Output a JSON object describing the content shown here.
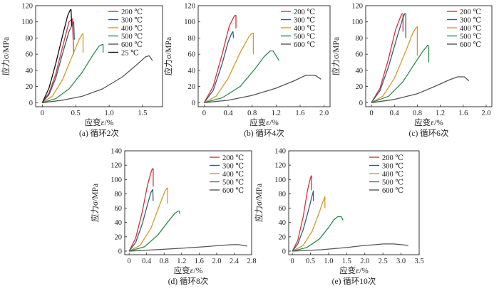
{
  "chart_data": [
    {
      "type": "line",
      "caption": "(a) 循环2次",
      "xlabel": "应变ε/%",
      "ylabel": "应力σ/MPa",
      "xlim": [
        -0.1,
        1.8
      ],
      "ylim": [
        -5,
        120
      ],
      "xticks": [
        "0",
        "0.5",
        "1.0",
        "1.5"
      ],
      "yticks": [
        "0",
        "20",
        "40",
        "60",
        "80",
        "100",
        "120"
      ],
      "legend": "top-right",
      "series": [
        {
          "name": "200 ℃",
          "color": "#d3333a",
          "x": [
            0,
            0.1,
            0.2,
            0.3,
            0.4,
            0.45,
            0.46,
            0.47
          ],
          "y": [
            0,
            12,
            35,
            68,
            100,
            104,
            80,
            60
          ]
        },
        {
          "name": "300 ℃",
          "color": "#3b5b7a",
          "x": [
            0,
            0.1,
            0.2,
            0.3,
            0.4,
            0.47,
            0.48
          ],
          "y": [
            0,
            10,
            30,
            60,
            88,
            100,
            78
          ]
        },
        {
          "name": "400 ℃",
          "color": "#d39a2c",
          "x": [
            0,
            0.15,
            0.3,
            0.45,
            0.55,
            0.6,
            0.61,
            0.61
          ],
          "y": [
            0,
            8,
            28,
            58,
            78,
            85,
            85,
            62
          ]
        },
        {
          "name": "500 ℃",
          "color": "#2e8b50",
          "x": [
            0,
            0.2,
            0.4,
            0.6,
            0.75,
            0.85,
            0.9,
            0.91,
            0.91
          ],
          "y": [
            0,
            5,
            17,
            38,
            58,
            70,
            72,
            72,
            62
          ]
        },
        {
          "name": "600 ℃",
          "color": "#555555",
          "x": [
            0,
            0.3,
            0.6,
            0.9,
            1.2,
            1.4,
            1.55,
            1.6,
            1.65
          ],
          "y": [
            0,
            3,
            8,
            17,
            32,
            46,
            57,
            58,
            52
          ]
        },
        {
          "name": "25 ℃",
          "color": "#111111",
          "x": [
            0,
            0.1,
            0.2,
            0.3,
            0.38,
            0.42,
            0.43,
            0.44
          ],
          "y": [
            0,
            18,
            48,
            82,
            108,
            115,
            115,
            95
          ]
        }
      ]
    },
    {
      "type": "line",
      "caption": "(b) 循环4次",
      "xlabel": "应变ε/%",
      "ylabel": "应力σ/MPa",
      "xlim": [
        -0.1,
        2.1
      ],
      "ylim": [
        -5,
        120
      ],
      "xticks": [
        "0",
        "0.4",
        "0.8",
        "1.2",
        "1.6",
        "2.0"
      ],
      "yticks": [
        "0",
        "20",
        "40",
        "60",
        "80",
        "100",
        "120"
      ],
      "legend": "top-right",
      "series": [
        {
          "name": "200 ℃",
          "color": "#d3333a",
          "x": [
            0,
            0.15,
            0.3,
            0.42,
            0.5,
            0.52,
            0.53,
            0.53
          ],
          "y": [
            0,
            20,
            60,
            95,
            107,
            108,
            108,
            92
          ]
        },
        {
          "name": "300 ℃",
          "color": "#3b5b7a",
          "x": [
            0,
            0.15,
            0.3,
            0.4,
            0.46,
            0.48,
            0.49
          ],
          "y": [
            0,
            15,
            48,
            75,
            86,
            88,
            80
          ]
        },
        {
          "name": "400 ℃",
          "color": "#d39a2c",
          "x": [
            0,
            0.2,
            0.4,
            0.6,
            0.75,
            0.8,
            0.82,
            0.82
          ],
          "y": [
            0,
            8,
            30,
            62,
            82,
            86,
            86,
            60
          ]
        },
        {
          "name": "500 ℃",
          "color": "#2e8b50",
          "x": [
            0,
            0.3,
            0.6,
            0.85,
            1.0,
            1.1,
            1.15,
            1.25
          ],
          "y": [
            0,
            6,
            20,
            42,
            57,
            64,
            64,
            52
          ]
        },
        {
          "name": "600 ℃",
          "color": "#555555",
          "x": [
            0,
            0.4,
            0.8,
            1.2,
            1.5,
            1.7,
            1.85,
            1.95
          ],
          "y": [
            0,
            3,
            9,
            18,
            27,
            34,
            34,
            29
          ]
        }
      ]
    },
    {
      "type": "line",
      "caption": "(c) 循环6次",
      "xlabel": "应变ε/%",
      "ylabel": "应力σ/MPa",
      "xlim": [
        -0.1,
        2.1
      ],
      "ylim": [
        -5,
        120
      ],
      "xticks": [
        "0",
        "0.4",
        "0.8",
        "1.2",
        "1.6",
        "2.0"
      ],
      "yticks": [
        "0",
        "20",
        "40",
        "60",
        "80",
        "100",
        "120"
      ],
      "legend": "top-right",
      "series": [
        {
          "name": "200 ℃",
          "color": "#d3333a",
          "x": [
            0,
            0.15,
            0.3,
            0.42,
            0.5,
            0.53,
            0.55,
            0.55
          ],
          "y": [
            0,
            18,
            55,
            90,
            105,
            110,
            110,
            88
          ]
        },
        {
          "name": "300 ℃",
          "color": "#3b5b7a",
          "x": [
            0,
            0.15,
            0.3,
            0.45,
            0.55,
            0.58,
            0.6,
            0.6
          ],
          "y": [
            0,
            15,
            45,
            82,
            105,
            110,
            110,
            80
          ]
        },
        {
          "name": "400 ℃",
          "color": "#d39a2c",
          "x": [
            0,
            0.2,
            0.4,
            0.6,
            0.72,
            0.78,
            0.8,
            0.8
          ],
          "y": [
            0,
            8,
            30,
            64,
            86,
            93,
            94,
            58
          ]
        },
        {
          "name": "500 ℃",
          "color": "#2e8b50",
          "x": [
            0,
            0.3,
            0.55,
            0.75,
            0.9,
            0.98,
            1.0,
            1.0
          ],
          "y": [
            0,
            8,
            26,
            48,
            64,
            71,
            70,
            50
          ]
        },
        {
          "name": "600 ℃",
          "color": "#555555",
          "x": [
            0,
            0.4,
            0.8,
            1.1,
            1.35,
            1.5,
            1.62,
            1.7
          ],
          "y": [
            0,
            4,
            11,
            20,
            28,
            32,
            32,
            27
          ]
        }
      ]
    },
    {
      "type": "line",
      "caption": "(d) 循环8次",
      "xlabel": "应变ε/%",
      "ylabel": "应力σ/MPa",
      "xlim": [
        -0.1,
        2.8
      ],
      "ylim": [
        -5,
        140
      ],
      "xticks": [
        "0",
        "0.4",
        "0.8",
        "1.2",
        "1.6",
        "2.0",
        "2.4",
        "2.8"
      ],
      "yticks": [
        "0",
        "20",
        "40",
        "60",
        "80",
        "100",
        "120",
        "140"
      ],
      "legend": "top-right",
      "series": [
        {
          "name": "200 ℃",
          "color": "#d3333a",
          "x": [
            0,
            0.15,
            0.3,
            0.42,
            0.5,
            0.53,
            0.55,
            0.55
          ],
          "y": [
            0,
            18,
            55,
            92,
            110,
            115,
            115,
            90
          ]
        },
        {
          "name": "300 ℃",
          "color": "#3b5b7a",
          "x": [
            0,
            0.15,
            0.3,
            0.42,
            0.5,
            0.54,
            0.55
          ],
          "y": [
            0,
            12,
            38,
            65,
            82,
            86,
            70
          ]
        },
        {
          "name": "400 ℃",
          "color": "#d39a2c",
          "x": [
            0,
            0.25,
            0.5,
            0.7,
            0.82,
            0.87,
            0.88,
            0.88
          ],
          "y": [
            0,
            8,
            32,
            65,
            84,
            88,
            88,
            66
          ]
        },
        {
          "name": "500 ℃",
          "color": "#2e8b50",
          "x": [
            0,
            0.35,
            0.65,
            0.9,
            1.05,
            1.12,
            1.15,
            1.16
          ],
          "y": [
            0,
            6,
            22,
            42,
            53,
            56,
            56,
            52
          ]
        },
        {
          "name": "600 ℃",
          "color": "#555555",
          "x": [
            0,
            0.6,
            1.2,
            1.7,
            2.1,
            2.35,
            2.5,
            2.7
          ],
          "y": [
            0,
            2,
            4,
            6,
            8,
            9,
            9,
            7
          ]
        }
      ]
    },
    {
      "type": "line",
      "caption": "(e) 循环10次",
      "xlabel": "应变ε/%",
      "ylabel": "应力σ/MPa",
      "xlim": [
        -0.1,
        3.5
      ],
      "ylim": [
        -5,
        140
      ],
      "xticks": [
        "0",
        "0.5",
        "1.0",
        "1.5",
        "2.0",
        "2.5",
        "3.0",
        "3.5"
      ],
      "yticks": [
        "0",
        "20",
        "40",
        "60",
        "80",
        "100",
        "120",
        "140"
      ],
      "legend": "top-right",
      "series": [
        {
          "name": "200 ℃",
          "color": "#d3333a",
          "x": [
            0,
            0.15,
            0.3,
            0.42,
            0.5,
            0.52,
            0.53,
            0.53
          ],
          "y": [
            0,
            15,
            48,
            85,
            102,
            105,
            105,
            85
          ]
        },
        {
          "name": "300 ℃",
          "color": "#3b5b7a",
          "x": [
            0,
            0.15,
            0.3,
            0.45,
            0.55,
            0.58,
            0.58
          ],
          "y": [
            0,
            10,
            30,
            58,
            78,
            84,
            70
          ]
        },
        {
          "name": "400 ℃",
          "color": "#d39a2c",
          "x": [
            0,
            0.3,
            0.55,
            0.75,
            0.85,
            0.9,
            0.9
          ],
          "y": [
            0,
            8,
            28,
            55,
            70,
            76,
            60
          ]
        },
        {
          "name": "500 ℃",
          "color": "#2e8b50",
          "x": [
            0,
            0.4,
            0.75,
            1.0,
            1.15,
            1.25,
            1.35,
            1.4
          ],
          "y": [
            0,
            5,
            17,
            33,
            44,
            48,
            48,
            43
          ]
        },
        {
          "name": "600 ℃",
          "color": "#555555",
          "x": [
            0,
            0.8,
            1.5,
            2.0,
            2.3,
            2.5,
            2.8,
            3.2
          ],
          "y": [
            0,
            2,
            5,
            8,
            9,
            10,
            10,
            8
          ]
        }
      ]
    }
  ]
}
